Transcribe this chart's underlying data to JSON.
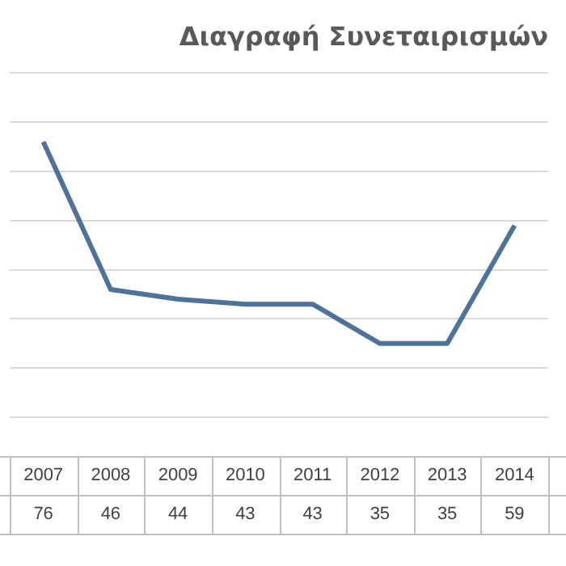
{
  "chart_data": {
    "type": "line",
    "title": "Διαγραφή Συνεταιρισμών",
    "categories": [
      "2007",
      "2008",
      "2009",
      "2010",
      "2011",
      "2012",
      "2013",
      "2014"
    ],
    "series": [
      {
        "color": "#4f729a",
        "values": [
          76,
          46,
          44,
          43,
          43,
          35,
          35,
          59
        ]
      }
    ],
    "ylim": [
      20,
      90
    ],
    "yticks": [
      {
        "value": 20,
        "label": null
      },
      {
        "value": 30,
        "label": null
      },
      {
        "value": 40,
        "label": null
      },
      {
        "value": 50,
        "label": null
      },
      {
        "value": 60,
        "label": null
      },
      {
        "value": 70,
        "label": null
      },
      {
        "value": 80,
        "label": null
      },
      {
        "value": 90,
        "label": null
      }
    ],
    "grid": "y",
    "tick_labels": "x",
    "data_labels": true,
    "marker": "none",
    "legend": false
  }
}
